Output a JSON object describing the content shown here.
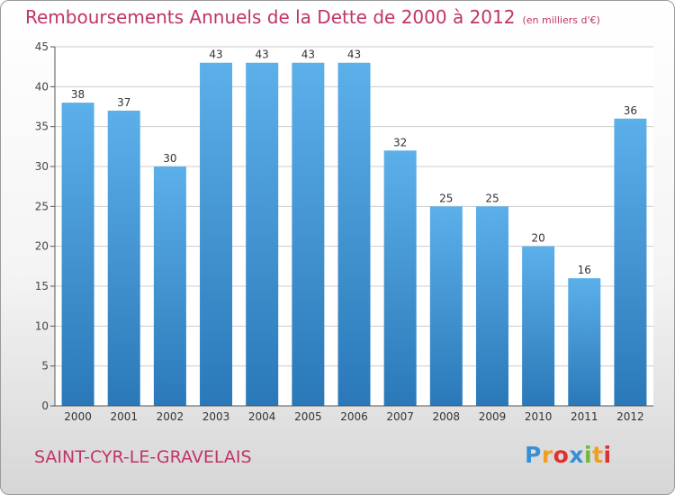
{
  "header": {
    "title": "Remboursements Annuels de la Dette de 2000 à 2012",
    "unit": "(en milliers d'€)"
  },
  "footer": {
    "commune": "SAINT-CYR-LE-GRAVELAIS",
    "logo_letters": [
      "P",
      "r",
      "o",
      "x",
      "i",
      "t",
      "i"
    ],
    "logo_colors": [
      "#3a8fd3",
      "#f0a020",
      "#e03030",
      "#3a8fd3",
      "#70b83a",
      "#f0a020",
      "#e03030"
    ]
  },
  "colors": {
    "title": "#c0346a",
    "bar_top": "#5cb0ea",
    "bar_bottom": "#2a78b8",
    "grid": "#cccccc"
  },
  "chart_data": {
    "type": "bar",
    "title": "Remboursements Annuels de la Dette de 2000 à 2012",
    "ylabel": "",
    "xlabel": "",
    "ylim": [
      0,
      45
    ],
    "yticks": [
      0,
      5,
      10,
      15,
      20,
      25,
      30,
      35,
      40,
      45
    ],
    "grid": true,
    "categories": [
      "2000",
      "2001",
      "2002",
      "2003",
      "2004",
      "2005",
      "2006",
      "2007",
      "2008",
      "2009",
      "2010",
      "2011",
      "2012"
    ],
    "values": [
      38,
      37,
      30,
      43,
      43,
      43,
      43,
      32,
      25,
      25,
      20,
      16,
      36
    ]
  }
}
